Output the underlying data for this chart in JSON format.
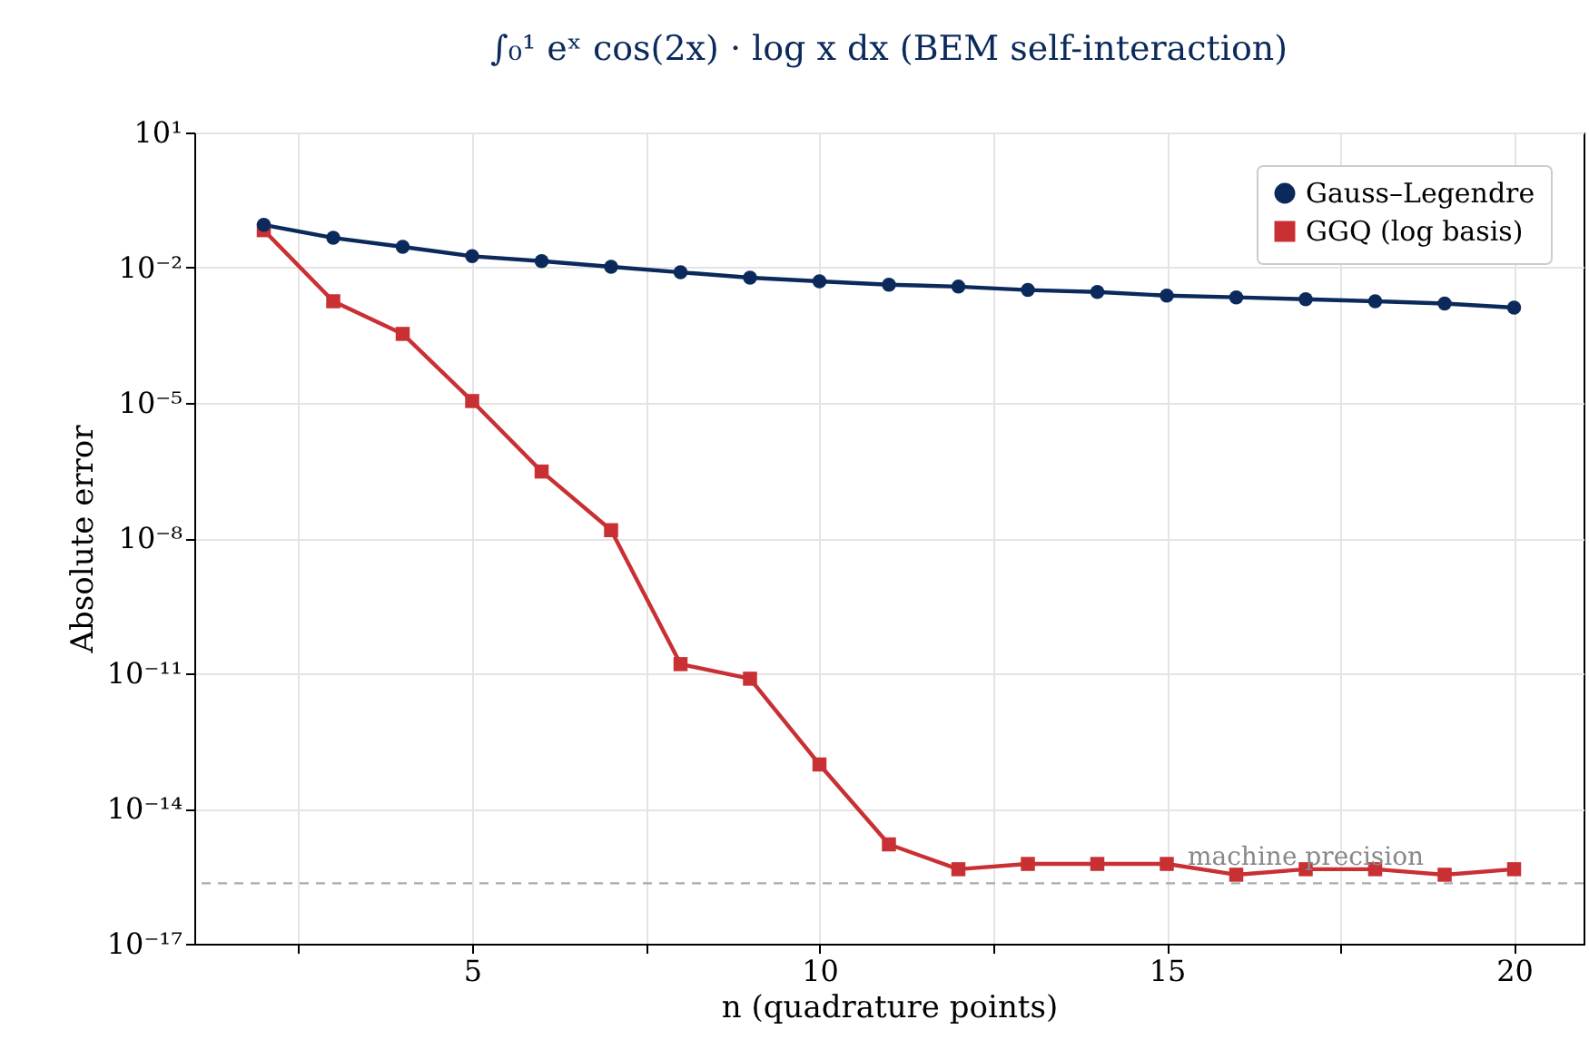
{
  "chart_data": {
    "type": "line",
    "title": "∫₀¹ eˣ cos(2x) · log x dx   (BEM self-interaction)",
    "xlabel": "n (quadrature points)",
    "ylabel": "Absolute error",
    "x": [
      2,
      3,
      4,
      5,
      6,
      7,
      8,
      9,
      10,
      11,
      12,
      13,
      14,
      15,
      16,
      17,
      18,
      19,
      20
    ],
    "series": [
      {
        "name": "Gauss–Legendre",
        "color": "#0b2a5b",
        "marker": "circle",
        "values": [
          0.089,
          0.046,
          0.029,
          0.018,
          0.014,
          0.0105,
          0.0079,
          0.006,
          0.005,
          0.0042,
          0.0038,
          0.0032,
          0.0029,
          0.0024,
          0.0022,
          0.002,
          0.0018,
          0.0016,
          0.0013
        ]
      },
      {
        "name": "GGQ (log basis)",
        "color": "#c93034",
        "marker": "square",
        "values": [
          0.068,
          0.0018,
          0.00034,
          1.1e-05,
          3e-07,
          1.5e-08,
          1.6e-11,
          7.6e-12,
          9.5e-14,
          1.6e-15,
          4.5e-16,
          5.9e-16,
          5.9e-16,
          5.9e-16,
          3.4e-16,
          4.5e-16,
          4.5e-16,
          3.4e-16,
          4.5e-16
        ]
      }
    ],
    "log": "y",
    "xlim": [
      1,
      21
    ],
    "ylim": [
      1e-17,
      10
    ],
    "xticks": [
      {
        "value": 2.5,
        "label": null
      },
      5,
      {
        "value": 7.5,
        "label": null
      },
      10,
      {
        "value": 12.5,
        "label": null
      },
      15,
      {
        "value": 17.5,
        "label": null
      },
      20
    ],
    "yticks": [
      {
        "value": 1e-17,
        "label": "10⁻¹⁷"
      },
      {
        "value": 1e-14,
        "label": "10⁻¹⁴"
      },
      {
        "value": 1e-11,
        "label": "10⁻¹¹"
      },
      {
        "value": 1e-08,
        "label": "10⁻⁸"
      },
      {
        "value": 1e-05,
        "label": "10⁻⁵"
      },
      {
        "value": 0.01,
        "label": "10⁻²"
      },
      {
        "value": 10,
        "label": "10¹"
      }
    ],
    "grid": true,
    "legend": "top right",
    "line_style": "solid",
    "ref_lines": [
      {
        "axis": "y",
        "value": 2.2e-16,
        "color": "#aaaaaa",
        "line_style": "dashed"
      }
    ],
    "annotations": [
      {
        "text": "machine precision",
        "x": 17,
        "y": 8e-16
      }
    ]
  }
}
